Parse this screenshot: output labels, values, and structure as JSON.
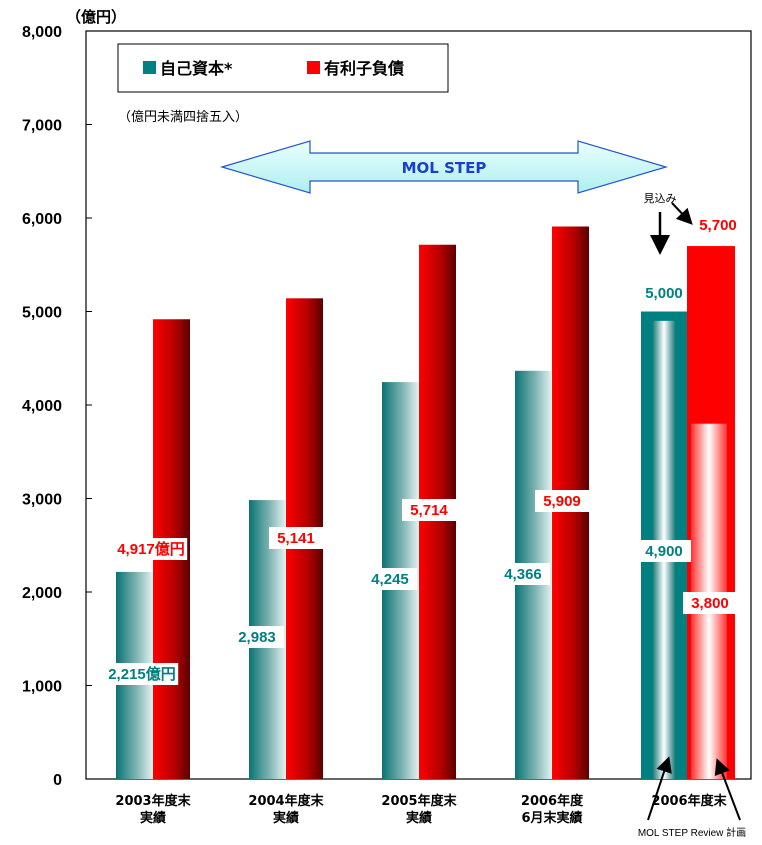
{
  "chart_data": {
    "type": "bar",
    "unit_label": "（億円）",
    "note": "（億円未満四捨五入）",
    "ylim": [
      0,
      8000
    ],
    "yticks": [
      "0",
      "1,000",
      "2,000",
      "3,000",
      "4,000",
      "5,000",
      "6,000",
      "7,000",
      "8,000"
    ],
    "categories": [
      [
        "2003年度末",
        "実績"
      ],
      [
        "2004年度末",
        "実績"
      ],
      [
        "2005年度末",
        "実績"
      ],
      [
        "2006年度",
        "6月末実績"
      ],
      [
        "2006年度末"
      ]
    ],
    "series": [
      {
        "name": "自己資本*",
        "color": "#008080",
        "values": [
          2215,
          2983,
          4245,
          4366,
          5000
        ],
        "labels": [
          "2,215億円",
          "2,983",
          "4,245",
          "4,366",
          "5,000"
        ]
      },
      {
        "name": "有利子負債",
        "color": "#ff0000",
        "values": [
          4917,
          5141,
          5714,
          5909,
          5700
        ],
        "labels": [
          "4,917億円",
          "5,141",
          "5,714",
          "5,909",
          "5,700"
        ]
      }
    ],
    "plan": {
      "values": [
        4900,
        3800
      ],
      "labels": [
        "4,900",
        "3,800"
      ]
    },
    "arrow_text": "MOL STEP",
    "forecast_label": "見込み",
    "plan_label": "MOL STEP Review 計画",
    "legend_position": "top-left",
    "grid": false
  }
}
